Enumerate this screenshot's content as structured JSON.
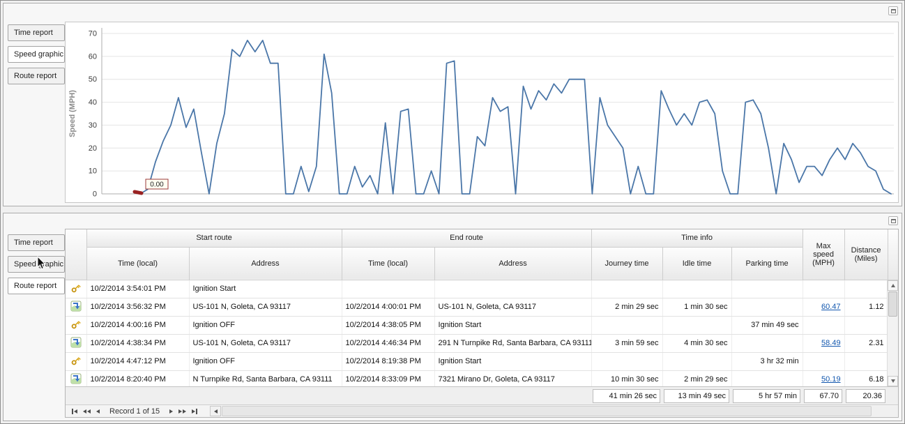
{
  "colors": {
    "chart_line": "#4a76a8",
    "chart_marker": "#992222",
    "link": "#1257ae"
  },
  "top_panel": {
    "tabs": [
      {
        "label": "Time report",
        "selected": false
      },
      {
        "label": "Speed graphic",
        "selected": true
      },
      {
        "label": "Route report",
        "selected": false
      }
    ]
  },
  "bottom_panel": {
    "tabs": [
      {
        "label": "Time report",
        "selected": false
      },
      {
        "label": "Speed graphic",
        "selected": false
      },
      {
        "label": "Route report",
        "selected": true
      }
    ]
  },
  "chart_data": {
    "type": "line",
    "title": "",
    "xlabel": "",
    "ylabel": "Speed (MPH)",
    "ylim": [
      0,
      70
    ],
    "yticks": [
      0,
      10,
      20,
      30,
      40,
      50,
      60,
      70
    ],
    "grid": "horizontal",
    "legend": "none",
    "line_color": "#4a76a8",
    "marker": {
      "label": "0.00",
      "value": 0,
      "color": "#992222"
    },
    "series": [
      {
        "name": "Speed (MPH)",
        "values": [
          0,
          2,
          14,
          23,
          30,
          42,
          29,
          37,
          18,
          0,
          22,
          35,
          63,
          60,
          67,
          62,
          67,
          57,
          57,
          0,
          0,
          12,
          1,
          12,
          61,
          44,
          0,
          0,
          12,
          3,
          8,
          0,
          31,
          0,
          36,
          37,
          0,
          0,
          10,
          0,
          57,
          58,
          0,
          0,
          25,
          21,
          42,
          36,
          38,
          0,
          47,
          37,
          45,
          41,
          48,
          44,
          50,
          50,
          50,
          0,
          42,
          30,
          25,
          20,
          0,
          12,
          0,
          0,
          45,
          37,
          30,
          35,
          30,
          40,
          41,
          35,
          10,
          0,
          0,
          40,
          41,
          35,
          20,
          0,
          22,
          15,
          5,
          12,
          12,
          8,
          15,
          20,
          15,
          22,
          18,
          12,
          10,
          2,
          0
        ]
      }
    ]
  },
  "table": {
    "group_headers": {
      "start_route": "Start route",
      "end_route": "End route",
      "time_info": "Time info"
    },
    "column_headers": {
      "start_time": "Time (local)",
      "start_address": "Address",
      "end_time": "Time (local)",
      "end_address": "Address",
      "journey_time": "Journey time",
      "idle_time": "Idle time",
      "parking_time": "Parking time",
      "max_speed": "Max speed (MPH)",
      "distance": "Distance (Miles)"
    },
    "rows": [
      {
        "icon": "ignition-key-icon",
        "start_time": "10/2/2014 3:54:01 PM",
        "start_address": "Ignition Start",
        "end_time": "",
        "end_address": "",
        "journey_time": "",
        "idle_time": "",
        "parking_time": "",
        "max_speed": "",
        "distance": ""
      },
      {
        "icon": "route-segment-icon",
        "start_time": "10/2/2014 3:56:32 PM",
        "start_address": "US-101 N, Goleta, CA 93117",
        "end_time": "10/2/2014 4:00:01 PM",
        "end_address": "US-101 N, Goleta, CA 93117",
        "journey_time": "2 min 29 sec",
        "idle_time": "1 min 30 sec",
        "parking_time": "",
        "max_speed": "60.47",
        "distance": "1.12"
      },
      {
        "icon": "ignition-key-icon",
        "start_time": "10/2/2014 4:00:16 PM",
        "start_address": "Ignition OFF",
        "end_time": "10/2/2014 4:38:05 PM",
        "end_address": "Ignition Start",
        "journey_time": "",
        "idle_time": "",
        "parking_time": "37 min 49 sec",
        "max_speed": "",
        "distance": ""
      },
      {
        "icon": "route-segment-icon",
        "start_time": "10/2/2014 4:38:34 PM",
        "start_address": "US-101 N, Goleta, CA 93117",
        "end_time": "10/2/2014 4:46:34 PM",
        "end_address": "291 N Turnpike Rd, Santa Barbara, CA 93111",
        "journey_time": "3 min 59 sec",
        "idle_time": "4 min 30 sec",
        "parking_time": "",
        "max_speed": "58.49",
        "distance": "2.31"
      },
      {
        "icon": "ignition-key-icon",
        "start_time": "10/2/2014 4:47:12 PM",
        "start_address": "Ignition OFF",
        "end_time": "10/2/2014 8:19:38 PM",
        "end_address": "Ignition Start",
        "journey_time": "",
        "idle_time": "",
        "parking_time": "3 hr 32 min",
        "max_speed": "",
        "distance": ""
      },
      {
        "icon": "route-segment-icon",
        "start_time": "10/2/2014 8:20:40 PM",
        "start_address": "N Turnpike Rd, Santa Barbara, CA 93111",
        "end_time": "10/2/2014 8:33:09 PM",
        "end_address": "7321 Mirano Dr, Goleta, CA 93117",
        "journey_time": "10 min 30 sec",
        "idle_time": "2 min 29 sec",
        "parking_time": "",
        "max_speed": "50.19",
        "distance": "6.18"
      }
    ],
    "totals": {
      "journey_time": "41 min 26 sec",
      "idle_time": "13 min 49 sec",
      "parking_time": "5 hr 57 min",
      "max_speed": "67.70",
      "distance": "20.36"
    }
  },
  "pager": {
    "record_label": "Record 1 of 15"
  }
}
